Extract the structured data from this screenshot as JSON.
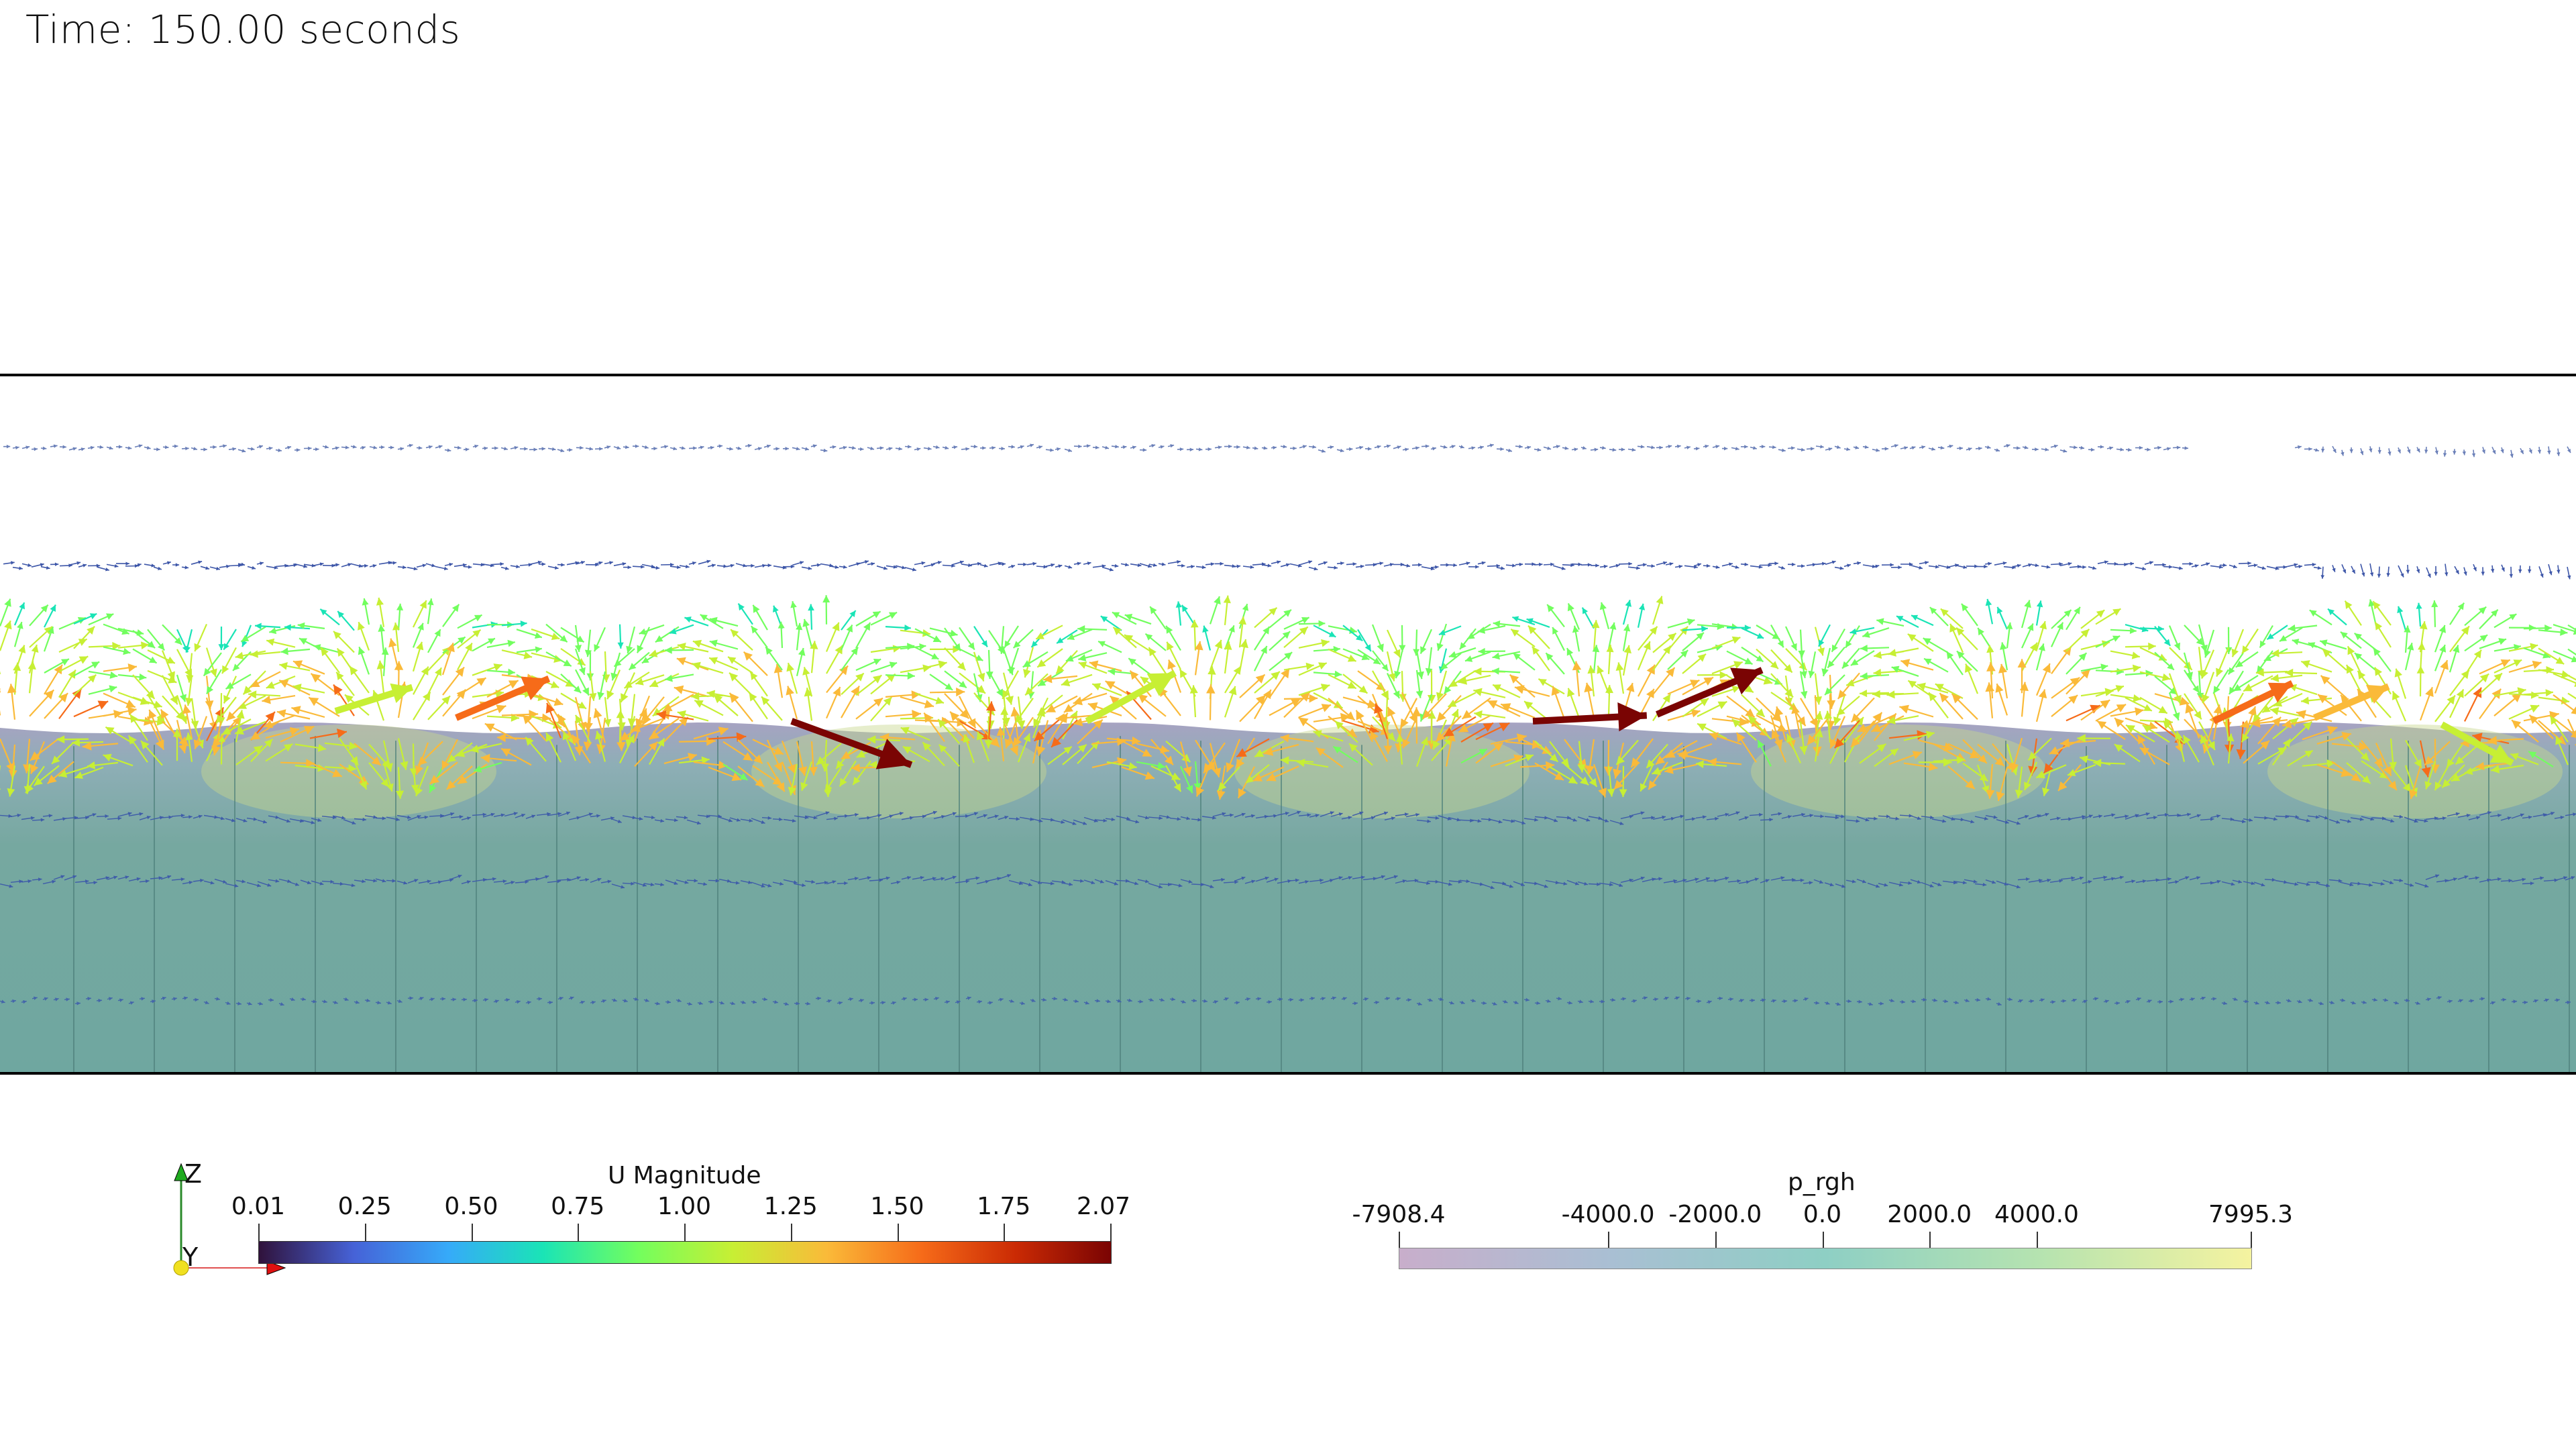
{
  "header": {
    "time_text": "Time: 150.00 seconds"
  },
  "colors": {
    "domain_fill": "#6fa8a0",
    "wave_light": "#c4d88c",
    "border": "#000000"
  },
  "u_magnitude_legend": {
    "title": "U Magnitude",
    "ticks": [
      "0.01",
      "0.25",
      "0.50",
      "0.75",
      "1.00",
      "1.25",
      "1.50",
      "1.75",
      "2.07"
    ],
    "range": [
      0.01,
      2.07
    ],
    "colormap": [
      "#30123b",
      "#4662d7",
      "#36aaf9",
      "#1ae4b6",
      "#72fe5e",
      "#c7ef34",
      "#faba39",
      "#f66b19",
      "#ca2a04",
      "#7a0403"
    ]
  },
  "p_rgh_legend": {
    "title": "p_rgh",
    "ticks": [
      "-7908.4",
      "-4000.0",
      "-2000.0",
      "0.0",
      "2000.0",
      "4000.0",
      "7995.3"
    ],
    "tick_values": [
      -7908.4,
      -4000.0,
      -2000.0,
      0.0,
      2000.0,
      4000.0,
      7995.3
    ],
    "range": [
      -7908.4,
      7995.3
    ],
    "colormap": [
      "#c8aecb",
      "#a9bfd3",
      "#8ecfc4",
      "#b5e3b0",
      "#f5f3a0"
    ]
  },
  "axes_triad": {
    "z_label": "Z",
    "y_label": "Y"
  }
}
